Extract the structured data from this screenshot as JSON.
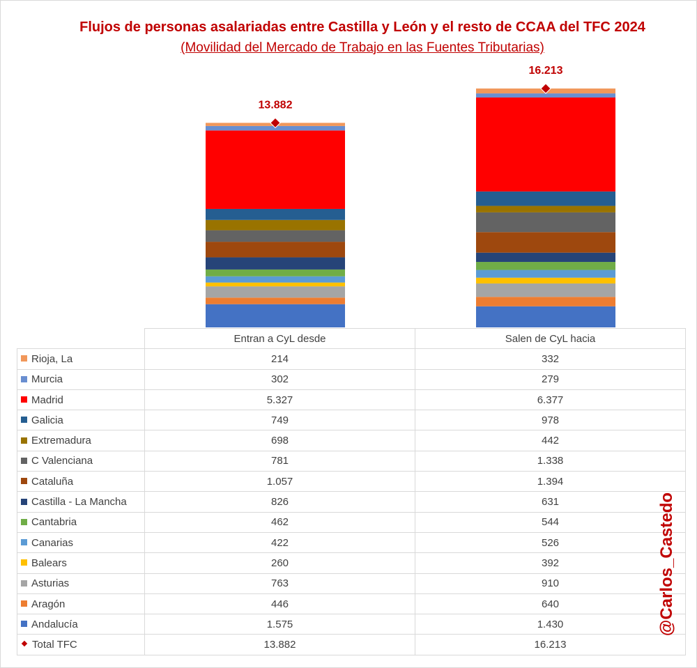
{
  "title": "Flujos de personas asalariadas entre Castilla y León y el resto de CCAA del TFC  2024",
  "subtitle": "(Movilidad del Mercado de Trabajo en las Fuentes Tributarias)",
  "watermark": "@Carlos_Castedo",
  "chart_data": {
    "type": "bar",
    "stacked": true,
    "title": "Flujos de personas asalariadas entre Castilla y León y el resto de CCAA del TFC  2024",
    "subtitle": "(Movilidad del Mercado de Trabajo en las Fuentes Tributarias)",
    "categories": [
      "Entran a CyL desde",
      "Salen de CyL hacia"
    ],
    "ylim": [
      0,
      16500
    ],
    "grid": false,
    "legend": "data-table",
    "series": [
      {
        "name": "Andalucía",
        "color": "#4472c4",
        "values": [
          1575,
          1430
        ],
        "display": [
          "1.575",
          "1.430"
        ]
      },
      {
        "name": "Aragón",
        "color": "#ed7d31",
        "values": [
          446,
          640
        ],
        "display": [
          "446",
          "640"
        ]
      },
      {
        "name": "Asturias",
        "color": "#a5a5a5",
        "values": [
          763,
          910
        ],
        "display": [
          "763",
          "910"
        ]
      },
      {
        "name": "Balears",
        "color": "#ffc000",
        "values": [
          260,
          392
        ],
        "display": [
          "260",
          "392"
        ]
      },
      {
        "name": "Canarias",
        "color": "#5b9bd5",
        "values": [
          422,
          526
        ],
        "display": [
          "422",
          "526"
        ]
      },
      {
        "name": "Cantabria",
        "color": "#70ad47",
        "values": [
          462,
          544
        ],
        "display": [
          "462",
          "544"
        ]
      },
      {
        "name": "Castilla - La Mancha",
        "color": "#264478",
        "values": [
          826,
          631
        ],
        "display": [
          "826",
          "631"
        ]
      },
      {
        "name": "Cataluña",
        "color": "#9e480e",
        "values": [
          1057,
          1394
        ],
        "display": [
          "1.057",
          "1.394"
        ]
      },
      {
        "name": "C Valenciana",
        "color": "#636363",
        "values": [
          781,
          1338
        ],
        "display": [
          "781",
          "1.338"
        ]
      },
      {
        "name": "Extremadura",
        "color": "#997300",
        "values": [
          698,
          442
        ],
        "display": [
          "698",
          "442"
        ]
      },
      {
        "name": "Galicia",
        "color": "#255e91",
        "values": [
          749,
          978
        ],
        "display": [
          "749",
          "978"
        ]
      },
      {
        "name": "Madrid",
        "color": "#ff0000",
        "values": [
          5327,
          6377
        ],
        "display": [
          "5.327",
          "6.377"
        ]
      },
      {
        "name": "Murcia",
        "color": "#698ed0",
        "values": [
          302,
          279
        ],
        "display": [
          "302",
          "279"
        ]
      },
      {
        "name": "Rioja, La",
        "color": "#f1975a",
        "values": [
          214,
          332
        ],
        "display": [
          "214",
          "332"
        ]
      }
    ],
    "total": {
      "name": "Total TFC",
      "type": "marker",
      "color": "#c00000",
      "values": [
        13882,
        16213
      ],
      "labels": [
        "13.882",
        "16.213"
      ]
    }
  }
}
